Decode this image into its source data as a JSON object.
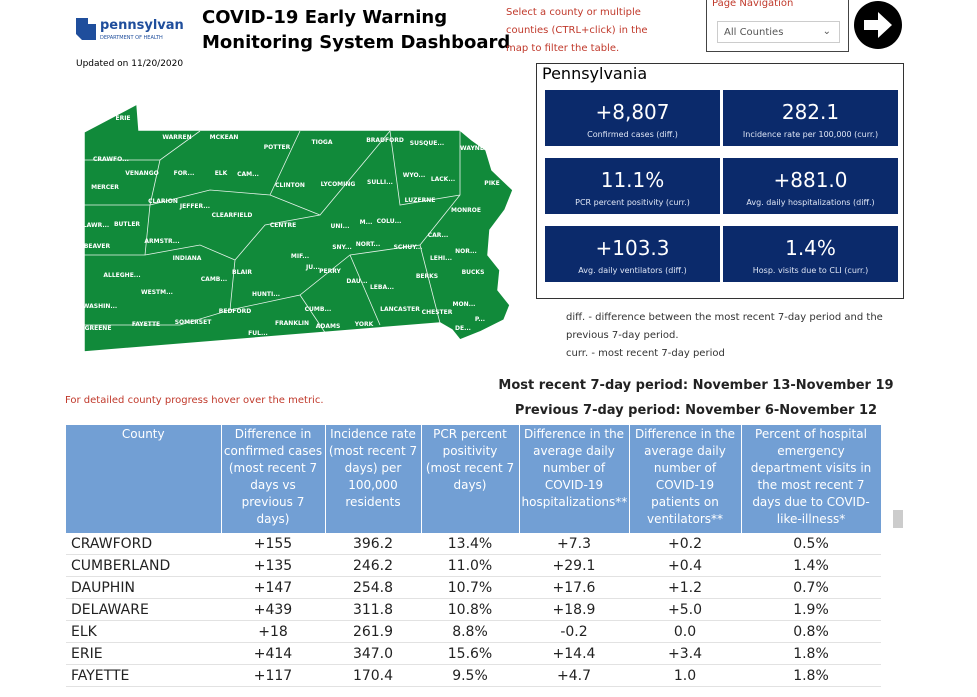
{
  "header": {
    "logo": "pennsylvania",
    "logo_sub": "DEPARTMENT OF HEALTH",
    "title_line1": "COVID-19 Early Warning",
    "title_line2": "Monitoring System Dashboard",
    "updated": "Updated on 11/20/2020"
  },
  "instructions": [
    "Select a county or multiple",
    "counties (CTRL+click) in the",
    "map to filter the table."
  ],
  "navigation": {
    "label": "Page Navigation",
    "dropdown": "All Counties"
  },
  "map": {
    "labels": [
      "ERIE",
      "WARREN",
      "MCKEAN",
      "POTTER",
      "TIOGA",
      "BRADFORD",
      "SUSQUE...",
      "WAYNE",
      "CRAWFO...",
      "VENANGO",
      "FOR...",
      "ELK",
      "CAM...",
      "CLINTON",
      "LYCOMING",
      "SULLI...",
      "WYO...",
      "LACK...",
      "PIKE",
      "MERCER",
      "CLARION",
      "JEFFER...",
      "LUZERNE",
      "MONROE",
      "LAWR...",
      "BUTLER",
      "CLEARFIELD",
      "CENTRE",
      "UNI...",
      "M...",
      "COLU...",
      "CAR...",
      "BEAVER",
      "ARMSTR...",
      "INDIANA",
      "MIF...",
      "SNY...",
      "NORT...",
      "SCHUY...",
      "NOR...",
      "LEHI...",
      "ALLEGHE...",
      "JU...",
      "PERRY",
      "DAU...",
      "BERKS",
      "BUCKS",
      "CAMB...",
      "BLAIR",
      "WESTM...",
      "HUNTI...",
      "LEBA...",
      "WASHIN...",
      "FAYETTE",
      "GREENE",
      "SOMERSET",
      "BEDFORD",
      "FUL...",
      "FRANKLIN",
      "CUMB...",
      "ADAMS",
      "YORK",
      "LANCASTER",
      "CHESTER",
      "MON...",
      "DE...",
      "P..."
    ],
    "hint": "For detailed county progress hover over the metric."
  },
  "panel": {
    "title": "Pennsylvania",
    "tiles": [
      {
        "value": "+8,807",
        "label": "Confirmed cases (diff.)"
      },
      {
        "value": "282.1",
        "label": "Incidence rate per 100,000 (curr.)"
      },
      {
        "value": "11.1%",
        "label": "PCR percent positivity (curr.)"
      },
      {
        "value": "+881.0",
        "label": "Avg. daily hospitalizations (diff.)"
      },
      {
        "value": "+103.3",
        "label": "Avg. daily ventilators (diff.)"
      },
      {
        "value": "1.4%",
        "label": "Hosp. visits due to CLI (curr.)"
      }
    ]
  },
  "notes": [
    "diff. - difference between the most recent 7-day period and the",
    "previous 7-day period.",
    "curr. - most recent 7-day period"
  ],
  "periods": [
    "Most recent 7-day period: November 13-November 19",
    "Previous 7-day period: November 6-November 12"
  ],
  "table": {
    "columns": [
      "County",
      "Difference in confirmed cases (most recent 7 days vs previous 7 days)",
      "Incidence rate (most recent 7 days) per 100,000 residents",
      "PCR percent positivity (most recent 7 days)",
      "Difference in the average daily number of COVID-19 hospitalizations**",
      "Difference in the average daily number of COVID-19 patients on ventilators**",
      "Percent of hospital emergency department visits in the most recent 7 days due to COVID-like-illness*"
    ],
    "rows": [
      [
        "CRAWFORD",
        "+155",
        "396.2",
        "13.4%",
        "+7.3",
        "+0.2",
        "0.5%"
      ],
      [
        "CUMBERLAND",
        "+135",
        "246.2",
        "11.0%",
        "+29.1",
        "+0.4",
        "1.4%"
      ],
      [
        "DAUPHIN",
        "+147",
        "254.8",
        "10.7%",
        "+17.6",
        "+1.2",
        "0.7%"
      ],
      [
        "DELAWARE",
        "+439",
        "311.8",
        "10.8%",
        "+18.9",
        "+5.0",
        "1.9%"
      ],
      [
        "ELK",
        "+18",
        "261.9",
        "8.8%",
        "-0.2",
        "0.0",
        "0.8%"
      ],
      [
        "ERIE",
        "+414",
        "347.0",
        "15.6%",
        "+14.4",
        "+3.4",
        "1.8%"
      ],
      [
        "FAYETTE",
        "+117",
        "170.4",
        "9.5%",
        "+4.7",
        "1.0",
        "1.8%"
      ]
    ]
  }
}
